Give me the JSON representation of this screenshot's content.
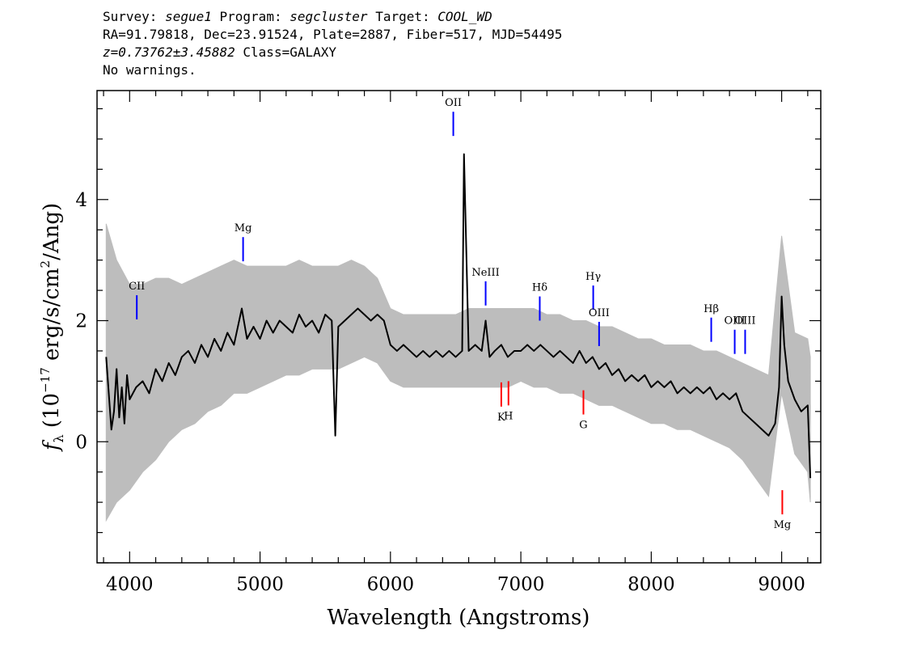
{
  "header": {
    "survey_label": "Survey:",
    "survey": "segue1",
    "program_label": "Program:",
    "program": "segcluster",
    "target_label": "Target:",
    "target": "COOL_WD",
    "line2": "RA=91.79818, Dec=23.91524, Plate=2887, Fiber=517, MJD=54495",
    "z_text": "z=0.73762±3.45882",
    "class_text": "Class=GALAXY",
    "warnings": "No warnings."
  },
  "chart_data": {
    "type": "line",
    "xlabel": "Wavelength (Angstroms)",
    "ylabel_prefix": "f",
    "ylabel_sub": "λ",
    "ylabel_open": " (10",
    "ylabel_exp": "−17",
    "ylabel_mid": " erg/s/cm",
    "ylabel_exp2": "2",
    "ylabel_close": "/Ang)",
    "xlim": [
      3750,
      9300
    ],
    "ylim": [
      -2.0,
      5.8
    ],
    "xticks": [
      4000,
      5000,
      6000,
      7000,
      8000,
      9000
    ],
    "yticks": [
      0,
      2,
      4
    ],
    "grid": false,
    "series": [
      {
        "role": "flux",
        "color": "#000000",
        "x": [
          3820,
          3840,
          3860,
          3880,
          3900,
          3920,
          3940,
          3960,
          3980,
          4000,
          4050,
          4100,
          4150,
          4200,
          4250,
          4300,
          4350,
          4400,
          4450,
          4500,
          4550,
          4600,
          4650,
          4700,
          4750,
          4800,
          4860,
          4900,
          4950,
          5000,
          5050,
          5100,
          5150,
          5200,
          5250,
          5300,
          5350,
          5400,
          5450,
          5500,
          5550,
          5577,
          5600,
          5650,
          5700,
          5750,
          5800,
          5850,
          5900,
          5950,
          6000,
          6050,
          6100,
          6150,
          6200,
          6250,
          6300,
          6350,
          6400,
          6450,
          6500,
          6550,
          6564,
          6600,
          6650,
          6700,
          6730,
          6760,
          6800,
          6850,
          6900,
          6950,
          7000,
          7050,
          7100,
          7150,
          7200,
          7250,
          7300,
          7350,
          7400,
          7450,
          7500,
          7550,
          7600,
          7650,
          7700,
          7750,
          7800,
          7850,
          7900,
          7950,
          8000,
          8050,
          8100,
          8150,
          8200,
          8250,
          8300,
          8350,
          8400,
          8450,
          8500,
          8550,
          8600,
          8650,
          8700,
          8750,
          8800,
          8850,
          8900,
          8950,
          8980,
          9000,
          9020,
          9050,
          9100,
          9150,
          9200,
          9220
        ],
        "y": [
          1.4,
          0.8,
          0.2,
          0.5,
          1.2,
          0.4,
          0.9,
          0.3,
          1.1,
          0.7,
          0.9,
          1.0,
          0.8,
          1.2,
          1.0,
          1.3,
          1.1,
          1.4,
          1.5,
          1.3,
          1.6,
          1.4,
          1.7,
          1.5,
          1.8,
          1.6,
          2.2,
          1.7,
          1.9,
          1.7,
          2.0,
          1.8,
          2.0,
          1.9,
          1.8,
          2.1,
          1.9,
          2.0,
          1.8,
          2.1,
          2.0,
          0.1,
          1.9,
          2.0,
          2.1,
          2.2,
          2.1,
          2.0,
          2.1,
          2.0,
          1.6,
          1.5,
          1.6,
          1.5,
          1.4,
          1.5,
          1.4,
          1.5,
          1.4,
          1.5,
          1.4,
          1.5,
          4.75,
          1.5,
          1.6,
          1.5,
          2.0,
          1.4,
          1.5,
          1.6,
          1.4,
          1.5,
          1.5,
          1.6,
          1.5,
          1.6,
          1.5,
          1.4,
          1.5,
          1.4,
          1.3,
          1.5,
          1.3,
          1.4,
          1.2,
          1.3,
          1.1,
          1.2,
          1.0,
          1.1,
          1.0,
          1.1,
          0.9,
          1.0,
          0.9,
          1.0,
          0.8,
          0.9,
          0.8,
          0.9,
          0.8,
          0.9,
          0.7,
          0.8,
          0.7,
          0.8,
          0.5,
          0.4,
          0.3,
          0.2,
          0.1,
          0.3,
          0.9,
          2.4,
          1.6,
          1.0,
          0.7,
          0.5,
          0.6,
          -0.6
        ]
      },
      {
        "role": "error-envelope",
        "color": "#bdbdbd",
        "x": [
          3820,
          3900,
          4000,
          4100,
          4200,
          4300,
          4400,
          4500,
          4600,
          4700,
          4800,
          4900,
          5000,
          5100,
          5200,
          5300,
          5400,
          5500,
          5600,
          5700,
          5800,
          5900,
          6000,
          6100,
          6200,
          6300,
          6400,
          6500,
          6600,
          6700,
          6800,
          6900,
          7000,
          7100,
          7200,
          7300,
          7400,
          7500,
          7600,
          7700,
          7800,
          7900,
          8000,
          8100,
          8200,
          8300,
          8400,
          8500,
          8600,
          8700,
          8800,
          8900,
          9000,
          9100,
          9200,
          9220
        ],
        "y_low": [
          -1.3,
          -1.0,
          -0.8,
          -0.5,
          -0.3,
          0.0,
          0.2,
          0.3,
          0.5,
          0.6,
          0.8,
          0.8,
          0.9,
          1.0,
          1.1,
          1.1,
          1.2,
          1.2,
          1.2,
          1.3,
          1.4,
          1.3,
          1.0,
          0.9,
          0.9,
          0.9,
          0.9,
          0.9,
          0.9,
          0.9,
          0.9,
          0.9,
          1.0,
          0.9,
          0.9,
          0.8,
          0.8,
          0.7,
          0.6,
          0.6,
          0.5,
          0.4,
          0.3,
          0.3,
          0.2,
          0.2,
          0.1,
          0.0,
          -0.1,
          -0.3,
          -0.6,
          -0.9,
          0.8,
          -0.2,
          -0.5,
          -1.0
        ],
        "y_high": [
          3.6,
          3.0,
          2.6,
          2.6,
          2.7,
          2.7,
          2.6,
          2.7,
          2.8,
          2.9,
          3.0,
          2.9,
          2.9,
          2.9,
          2.9,
          3.0,
          2.9,
          2.9,
          2.9,
          3.0,
          2.9,
          2.7,
          2.2,
          2.1,
          2.1,
          2.1,
          2.1,
          2.1,
          2.2,
          2.2,
          2.2,
          2.2,
          2.2,
          2.2,
          2.1,
          2.1,
          2.0,
          2.0,
          1.9,
          1.9,
          1.8,
          1.7,
          1.7,
          1.6,
          1.6,
          1.6,
          1.5,
          1.5,
          1.4,
          1.3,
          1.2,
          1.1,
          3.4,
          1.8,
          1.7,
          1.4
        ]
      }
    ],
    "line_markers": [
      {
        "label": "OII",
        "x": 6482,
        "y_bottom": 5.05,
        "y_top": 5.45,
        "color": "#0000ff",
        "label_side": "above"
      },
      {
        "label": "CII",
        "x": 4055,
        "y_bottom": 2.02,
        "y_top": 2.42,
        "color": "#0000ff",
        "label_side": "above"
      },
      {
        "label": "Mg",
        "x": 4870,
        "y_bottom": 2.98,
        "y_top": 3.38,
        "color": "#0000ff",
        "label_side": "above"
      },
      {
        "label": "NeIII",
        "x": 6730,
        "y_bottom": 2.25,
        "y_top": 2.65,
        "color": "#0000ff",
        "label_side": "above"
      },
      {
        "label": "Hδ",
        "x": 7145,
        "y_bottom": 2.0,
        "y_top": 2.4,
        "color": "#0000ff",
        "label_side": "above"
      },
      {
        "label": "Hγ",
        "x": 7555,
        "y_bottom": 2.18,
        "y_top": 2.58,
        "color": "#0000ff",
        "label_side": "above"
      },
      {
        "label": "OIII",
        "x": 7600,
        "y_bottom": 1.58,
        "y_top": 1.98,
        "color": "#0000ff",
        "label_side": "above"
      },
      {
        "label": "Hβ",
        "x": 8460,
        "y_bottom": 1.65,
        "y_top": 2.05,
        "color": "#0000ff",
        "label_side": "above"
      },
      {
        "label": "OIII",
        "x": 8640,
        "y_bottom": 1.45,
        "y_top": 1.85,
        "color": "#0000ff",
        "label_side": "above"
      },
      {
        "label": "OIII",
        "x": 8720,
        "y_bottom": 1.45,
        "y_top": 1.85,
        "color": "#0000ff",
        "label_side": "above"
      },
      {
        "label": "K",
        "x": 6850,
        "y_bottom": 0.58,
        "y_top": 0.98,
        "color": "#ff0000",
        "label_side": "below"
      },
      {
        "label": "H",
        "x": 6905,
        "y_bottom": 0.6,
        "y_top": 1.0,
        "color": "#ff0000",
        "label_side": "below"
      },
      {
        "label": "G",
        "x": 7480,
        "y_bottom": 0.45,
        "y_top": 0.85,
        "color": "#ff0000",
        "label_side": "below"
      },
      {
        "label": "Mg",
        "x": 9005,
        "y_bottom": -1.2,
        "y_top": -0.8,
        "color": "#ff0000",
        "label_side": "below"
      }
    ]
  }
}
